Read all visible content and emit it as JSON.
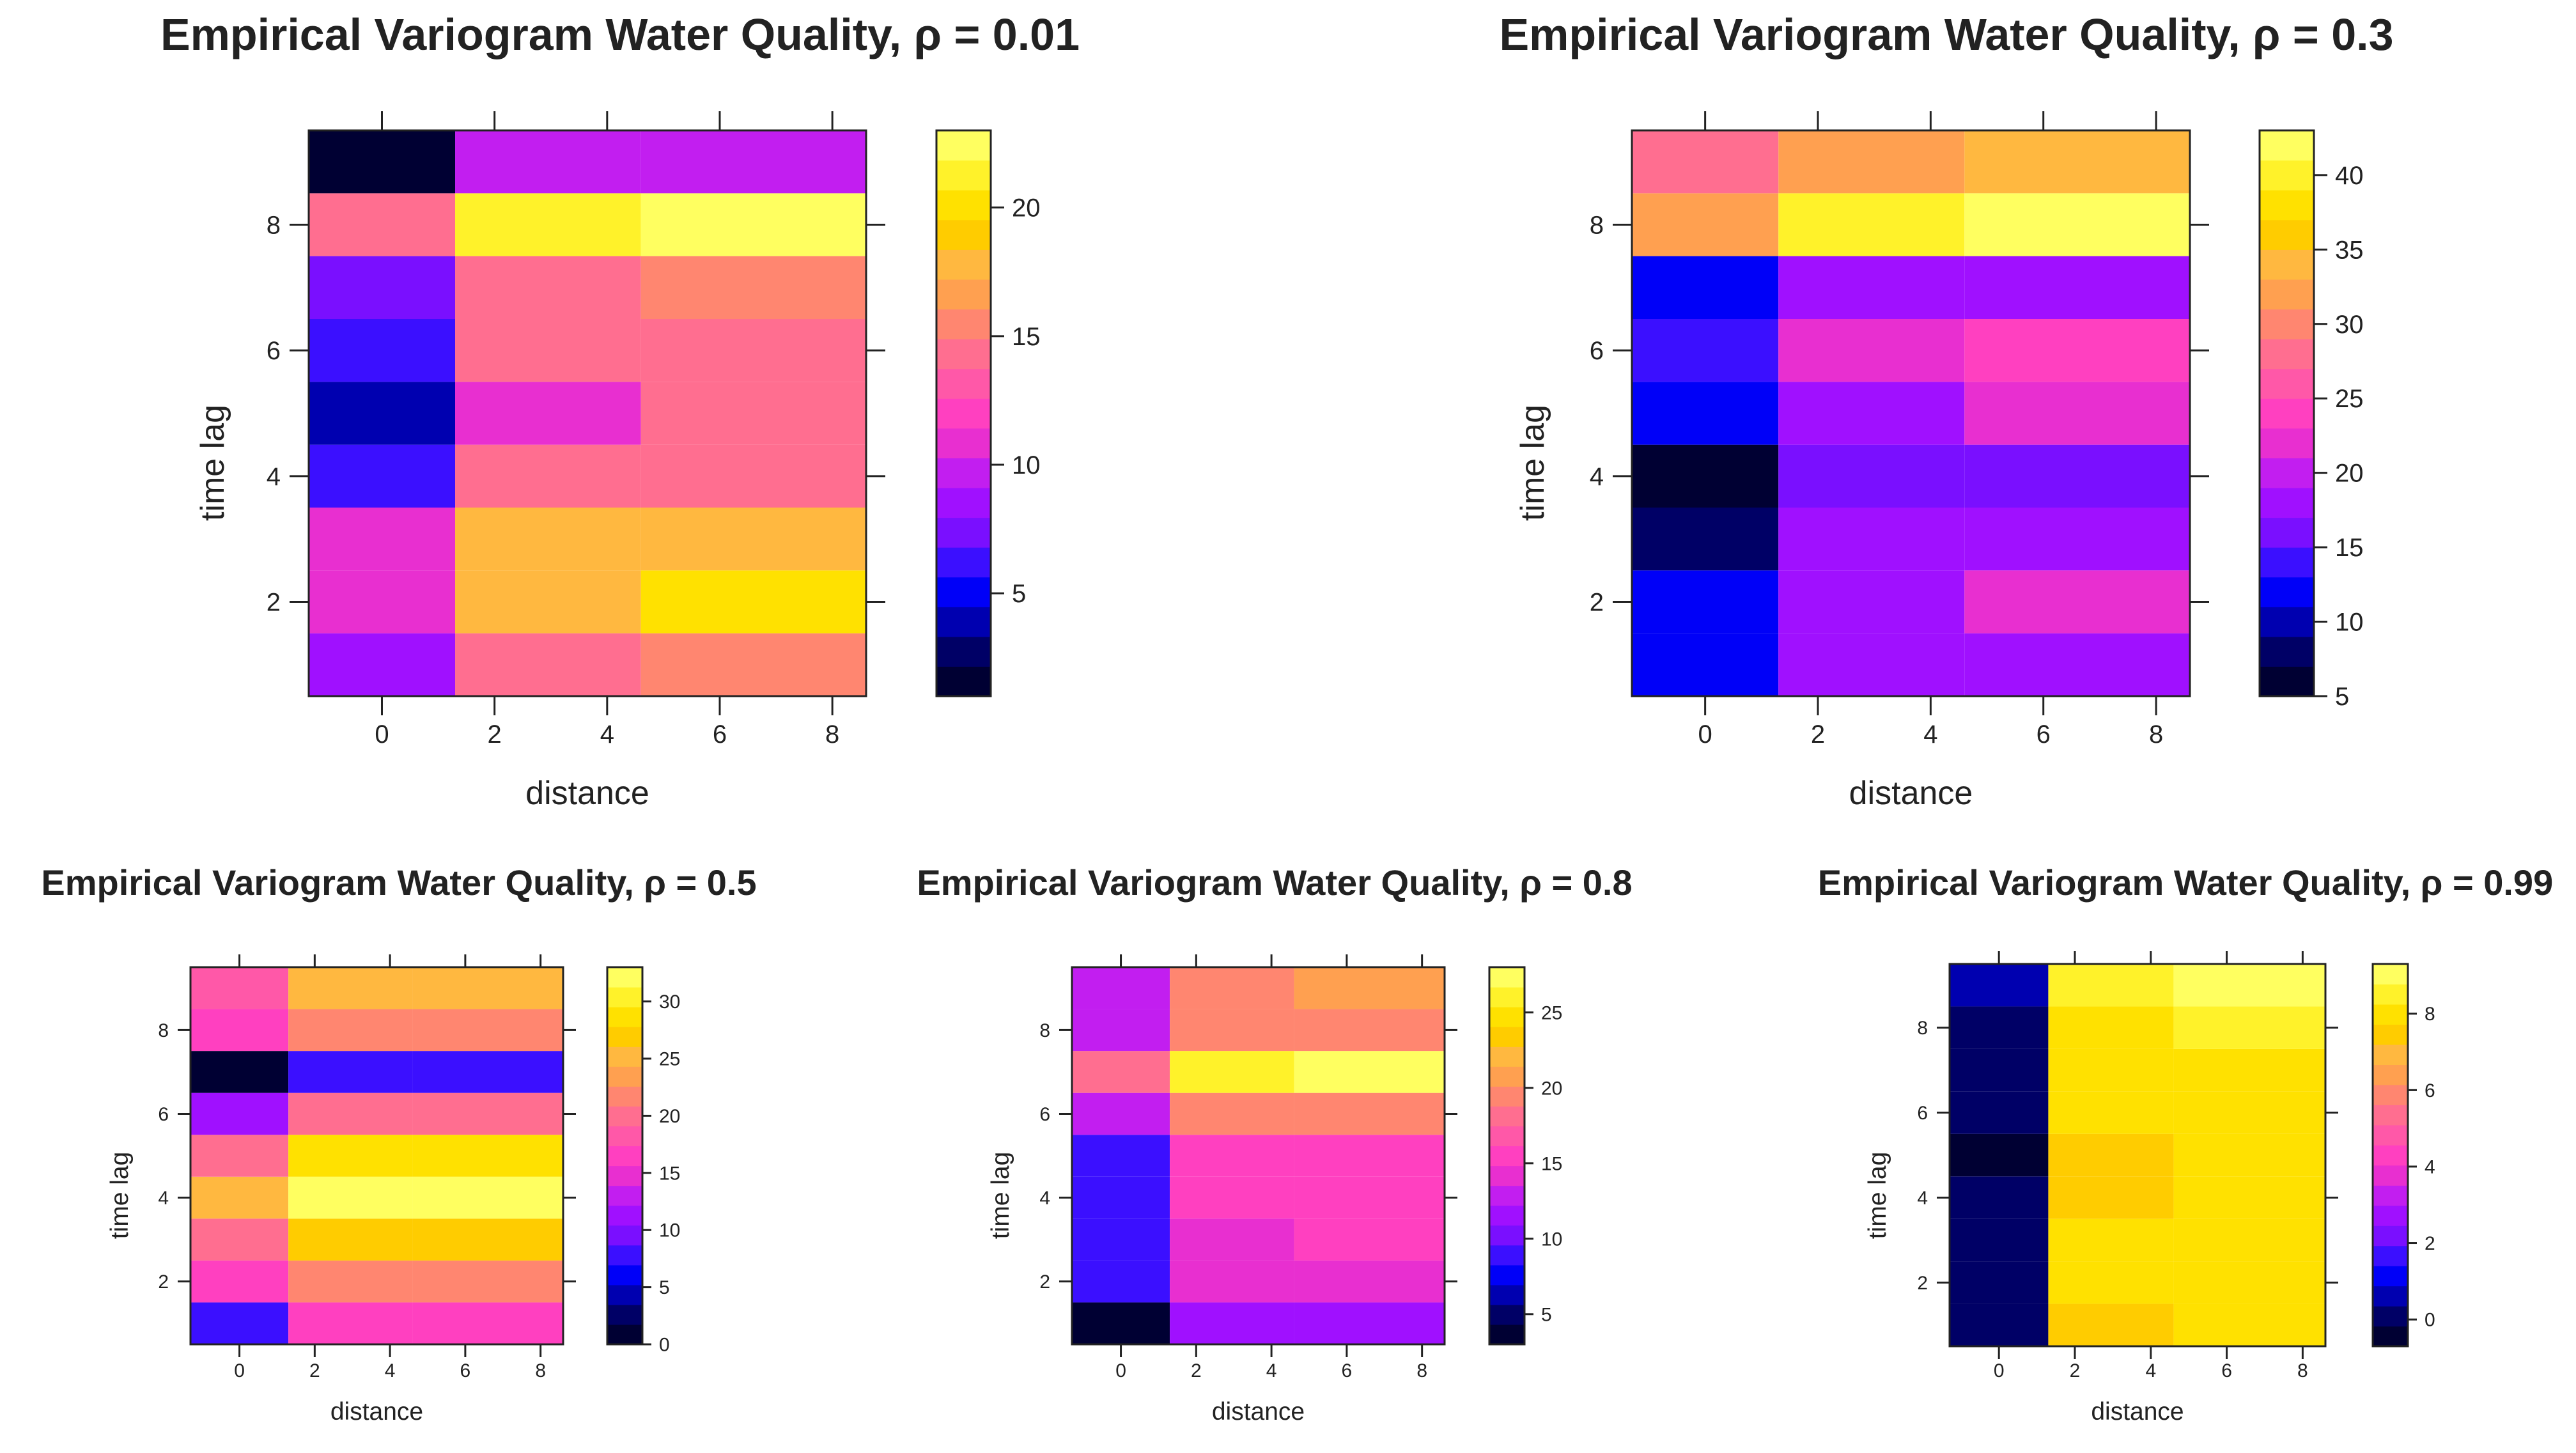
{
  "palette": [
    "#000033",
    "#000066",
    "#0000B0",
    "#0000F8",
    "#3B0FFF",
    "#7A0FFF",
    "#A010FF",
    "#C21EF0",
    "#E82FD0",
    "#FF40C0",
    "#FF58A8",
    "#FF6E90",
    "#FF8670",
    "#FFA050",
    "#FFB840",
    "#FFCC00",
    "#FFE100",
    "#FFF22A",
    "#FFFF60"
  ],
  "chart_data": [
    {
      "type": "heatmap",
      "title": "Empirical Variogram Water Quality, ρ = 0.01",
      "xlabel": "distance",
      "ylabel": "time lag",
      "x_bins": [
        [
          -1.3,
          1.3
        ],
        [
          1.3,
          4.6
        ],
        [
          4.6,
          8.6
        ]
      ],
      "x_ticks": [
        0,
        2,
        4,
        6,
        8
      ],
      "y_ticks": [
        2,
        4,
        6,
        8
      ],
      "y_range": [
        0.5,
        9.5
      ],
      "color_range": [
        1,
        23
      ],
      "colorbar_ticks": [
        5,
        10,
        15,
        20
      ],
      "values_by_time_lag_1_to_9": [
        [
          8,
          14,
          15
        ],
        [
          11,
          18,
          20
        ],
        [
          11,
          18,
          18
        ],
        [
          6,
          14,
          14
        ],
        [
          4,
          11,
          14
        ],
        [
          6,
          14,
          14
        ],
        [
          7,
          14,
          15
        ],
        [
          14,
          21,
          22
        ],
        [
          1,
          10,
          10
        ]
      ]
    },
    {
      "type": "heatmap",
      "title": "Empirical Variogram Water Quality, ρ = 0.3",
      "xlabel": "distance",
      "ylabel": "time lag",
      "x_bins": [
        [
          -1.3,
          1.3
        ],
        [
          1.3,
          4.6
        ],
        [
          4.6,
          8.6
        ]
      ],
      "x_ticks": [
        0,
        2,
        4,
        6,
        8
      ],
      "y_ticks": [
        2,
        4,
        6,
        8
      ],
      "y_range": [
        0.5,
        9.5
      ],
      "color_range": [
        5,
        43
      ],
      "colorbar_ticks": [
        5,
        10,
        15,
        20,
        25,
        30,
        35,
        40
      ],
      "values_by_time_lag_1_to_9": [
        [
          11,
          18,
          18
        ],
        [
          11,
          18,
          21
        ],
        [
          8,
          18,
          18
        ],
        [
          6,
          15,
          15
        ],
        [
          11,
          18,
          21
        ],
        [
          13,
          21,
          23
        ],
        [
          11,
          18,
          18
        ],
        [
          32,
          40,
          42
        ],
        [
          27,
          32,
          34
        ]
      ]
    },
    {
      "type": "heatmap",
      "title": "Empirical Variogram Water Quality, ρ = 0.5",
      "xlabel": "distance",
      "ylabel": "time lag",
      "x_bins": [
        [
          -1.3,
          1.3
        ],
        [
          1.3,
          4.6
        ],
        [
          4.6,
          8.6
        ]
      ],
      "x_ticks": [
        0,
        2,
        4,
        6,
        8
      ],
      "y_ticks": [
        2,
        4,
        6,
        8
      ],
      "y_range": [
        0.5,
        9.5
      ],
      "color_range": [
        0,
        33
      ],
      "colorbar_ticks": [
        0,
        5,
        10,
        15,
        20,
        25,
        30
      ],
      "values_by_time_lag_1_to_9": [
        [
          7,
          16,
          16
        ],
        [
          16,
          21,
          21
        ],
        [
          20,
          27,
          27
        ],
        [
          25,
          32,
          33
        ],
        [
          20,
          28,
          28
        ],
        [
          12,
          20,
          20
        ],
        [
          1,
          8,
          8
        ],
        [
          16,
          22,
          22
        ],
        [
          18,
          25,
          26
        ]
      ]
    },
    {
      "type": "heatmap",
      "title": "Empirical Variogram Water Quality, ρ = 0.8",
      "xlabel": "distance",
      "ylabel": "time lag",
      "x_bins": [
        [
          -1.3,
          1.3
        ],
        [
          1.3,
          4.6
        ],
        [
          4.6,
          8.6
        ]
      ],
      "x_ticks": [
        0,
        2,
        4,
        6,
        8
      ],
      "y_ticks": [
        2,
        4,
        6,
        8
      ],
      "y_range": [
        0.5,
        9.5
      ],
      "color_range": [
        3,
        28
      ],
      "colorbar_ticks": [
        5,
        10,
        15,
        20,
        25
      ],
      "values_by_time_lag_1_to_9": [
        [
          3,
          12,
          12
        ],
        [
          9,
          14,
          14
        ],
        [
          9,
          14,
          16
        ],
        [
          9,
          16,
          16
        ],
        [
          9,
          16,
          16
        ],
        [
          13,
          19,
          20
        ],
        [
          18,
          26,
          28
        ],
        [
          13,
          20,
          20
        ],
        [
          13,
          20,
          21
        ]
      ]
    },
    {
      "type": "heatmap",
      "title": "Empirical Variogram Water Quality, ρ = 0.99",
      "xlabel": "distance",
      "ylabel": "time lag",
      "x_bins": [
        [
          -1.3,
          1.3
        ],
        [
          1.3,
          4.6
        ],
        [
          4.6,
          8.6
        ]
      ],
      "x_ticks": [
        0,
        2,
        4,
        6,
        8
      ],
      "y_ticks": [
        2,
        4,
        6,
        8
      ],
      "y_range": [
        0.5,
        9.5
      ],
      "color_range": [
        -0.7,
        9.3
      ],
      "colorbar_ticks": [
        0,
        2,
        4,
        6,
        8
      ],
      "values_by_time_lag_1_to_9": [
        [
          0.2,
          7.2,
          8.1
        ],
        [
          0.2,
          8.1,
          8.1
        ],
        [
          0.2,
          8.1,
          8.1
        ],
        [
          0.2,
          7.2,
          8.1
        ],
        [
          -0.3,
          7.2,
          8.1
        ],
        [
          0.2,
          8.1,
          8.1
        ],
        [
          0.2,
          8.1,
          8.1
        ],
        [
          0.2,
          8.1,
          8.6
        ],
        [
          0.6,
          8.6,
          9.2
        ]
      ]
    }
  ]
}
